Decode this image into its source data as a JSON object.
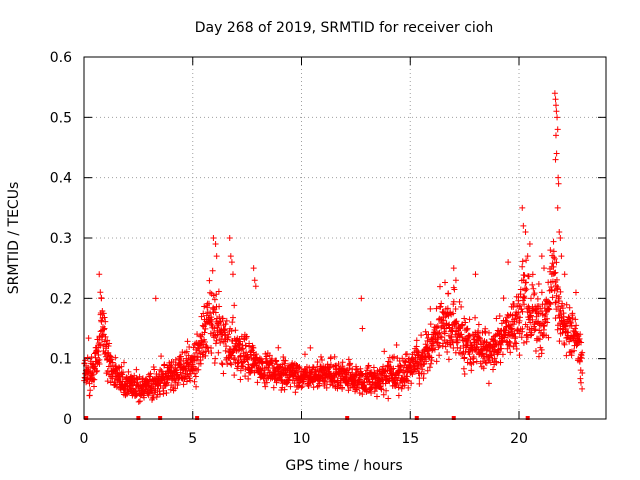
{
  "chart_data": {
    "type": "scatter",
    "title": "Day 268 of 2019, SRMTID for receiver cioh",
    "xlabel": "GPS time / hours",
    "ylabel": "SRMTID / TECUs",
    "xlim": [
      0,
      24
    ],
    "ylim": [
      0,
      0.6
    ],
    "xticks": [
      0,
      5,
      10,
      15,
      20
    ],
    "yticks": [
      0,
      0.1,
      0.2,
      0.3,
      0.4,
      0.5,
      0.6
    ],
    "xtick_labels": [
      "0",
      "5",
      "10",
      "15",
      "20"
    ],
    "ytick_labels": [
      "0",
      "0.1",
      "0.2",
      "0.3",
      "0.4",
      "0.5",
      "0.6"
    ],
    "grid": true,
    "marker": "+",
    "marker_color": "#ff0000",
    "envelope": {
      "x": [
        0,
        0.3,
        0.6,
        0.8,
        1.0,
        1.3,
        2.0,
        2.5,
        3.0,
        3.5,
        4.0,
        4.5,
        5.0,
        5.5,
        5.8,
        6.1,
        6.4,
        6.8,
        7.2,
        8.0,
        9.0,
        10.0,
        11.0,
        12.0,
        12.8,
        13.5,
        14.0,
        15.0,
        15.5,
        16.0,
        16.5,
        17.0,
        17.5,
        18.0,
        18.5,
        19.0,
        19.5,
        20.0,
        20.3,
        20.6,
        21.0,
        21.3,
        21.6,
        21.8,
        22.0,
        22.3,
        22.6,
        22.9
      ],
      "y": [
        0.08,
        0.07,
        0.1,
        0.16,
        0.12,
        0.07,
        0.06,
        0.05,
        0.055,
        0.06,
        0.07,
        0.08,
        0.09,
        0.13,
        0.17,
        0.16,
        0.13,
        0.12,
        0.1,
        0.09,
        0.08,
        0.07,
        0.075,
        0.07,
        0.065,
        0.065,
        0.07,
        0.08,
        0.1,
        0.12,
        0.15,
        0.16,
        0.12,
        0.12,
        0.11,
        0.12,
        0.15,
        0.17,
        0.2,
        0.17,
        0.16,
        0.17,
        0.25,
        0.18,
        0.16,
        0.14,
        0.14,
        0.1
      ],
      "spread": [
        0.035,
        0.03,
        0.035,
        0.045,
        0.04,
        0.025,
        0.02,
        0.02,
        0.02,
        0.025,
        0.025,
        0.03,
        0.035,
        0.04,
        0.05,
        0.05,
        0.045,
        0.04,
        0.035,
        0.03,
        0.025,
        0.02,
        0.022,
        0.02,
        0.02,
        0.022,
        0.025,
        0.028,
        0.035,
        0.04,
        0.045,
        0.045,
        0.04,
        0.04,
        0.035,
        0.035,
        0.045,
        0.05,
        0.06,
        0.05,
        0.045,
        0.05,
        0.06,
        0.05,
        0.045,
        0.04,
        0.04,
        0.03
      ]
    },
    "outliers": [
      {
        "x": 0.7,
        "y": 0.24
      },
      {
        "x": 0.75,
        "y": 0.21
      },
      {
        "x": 0.8,
        "y": 0.2
      },
      {
        "x": 3.3,
        "y": 0.2
      },
      {
        "x": 5.95,
        "y": 0.3
      },
      {
        "x": 6.05,
        "y": 0.29
      },
      {
        "x": 6.1,
        "y": 0.27
      },
      {
        "x": 6.7,
        "y": 0.3
      },
      {
        "x": 6.75,
        "y": 0.27
      },
      {
        "x": 6.8,
        "y": 0.26
      },
      {
        "x": 6.85,
        "y": 0.24
      },
      {
        "x": 7.8,
        "y": 0.25
      },
      {
        "x": 7.85,
        "y": 0.23
      },
      {
        "x": 7.9,
        "y": 0.22
      },
      {
        "x": 12.75,
        "y": 0.2
      },
      {
        "x": 12.8,
        "y": 0.15
      },
      {
        "x": 17.0,
        "y": 0.25
      },
      {
        "x": 17.1,
        "y": 0.23
      },
      {
        "x": 18.0,
        "y": 0.24
      },
      {
        "x": 19.5,
        "y": 0.26
      },
      {
        "x": 20.15,
        "y": 0.35
      },
      {
        "x": 20.2,
        "y": 0.32
      },
      {
        "x": 20.3,
        "y": 0.31
      },
      {
        "x": 20.4,
        "y": 0.27
      },
      {
        "x": 20.5,
        "y": 0.29
      },
      {
        "x": 21.05,
        "y": 0.27
      },
      {
        "x": 21.15,
        "y": 0.25
      },
      {
        "x": 21.65,
        "y": 0.54
      },
      {
        "x": 21.68,
        "y": 0.53
      },
      {
        "x": 21.7,
        "y": 0.52
      },
      {
        "x": 21.72,
        "y": 0.51
      },
      {
        "x": 21.75,
        "y": 0.5
      },
      {
        "x": 21.78,
        "y": 0.48
      },
      {
        "x": 21.7,
        "y": 0.47
      },
      {
        "x": 21.73,
        "y": 0.44
      },
      {
        "x": 21.68,
        "y": 0.43
      },
      {
        "x": 21.8,
        "y": 0.4
      },
      {
        "x": 21.82,
        "y": 0.39
      },
      {
        "x": 21.78,
        "y": 0.35
      },
      {
        "x": 21.85,
        "y": 0.31
      },
      {
        "x": 21.9,
        "y": 0.3
      },
      {
        "x": 21.95,
        "y": 0.27
      },
      {
        "x": 22.1,
        "y": 0.24
      },
      {
        "x": 22.9,
        "y": 0.05
      },
      {
        "x": 22.85,
        "y": 0.06
      }
    ],
    "axis_markers_x": [
      0.1,
      2.5,
      3.5,
      5.2,
      12.1,
      15.3,
      17.0,
      20.4
    ]
  }
}
